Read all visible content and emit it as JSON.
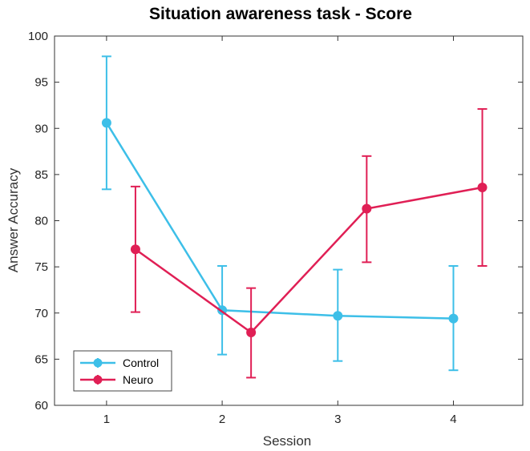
{
  "chart_data": {
    "type": "line",
    "title": "Situation awareness task - Score",
    "xlabel": "Session",
    "ylabel": "Answer Accuracy",
    "x_ticks": [
      1,
      2,
      3,
      4
    ],
    "y_ticks": [
      60,
      65,
      70,
      75,
      80,
      85,
      90,
      95,
      100
    ],
    "xlim": [
      0.55,
      4.6
    ],
    "ylim": [
      60,
      100
    ],
    "grid": false,
    "error_bars": true,
    "legend_position": "bottom-left",
    "series": [
      {
        "name": "Control",
        "color": "#3dbfe8",
        "x": [
          1,
          2,
          3,
          4
        ],
        "values": [
          90.6,
          70.3,
          69.7,
          69.4
        ],
        "err_low": [
          83.4,
          65.5,
          64.8,
          63.8
        ],
        "err_high": [
          97.8,
          75.1,
          74.7,
          75.1
        ]
      },
      {
        "name": "Neuro",
        "color": "#e01f55",
        "x": [
          1.25,
          2.25,
          3.25,
          4.25
        ],
        "values": [
          76.9,
          67.9,
          81.3,
          83.6
        ],
        "err_low": [
          70.1,
          63.0,
          75.5,
          75.1
        ],
        "err_high": [
          83.7,
          72.7,
          87.0,
          92.1
        ]
      }
    ]
  }
}
